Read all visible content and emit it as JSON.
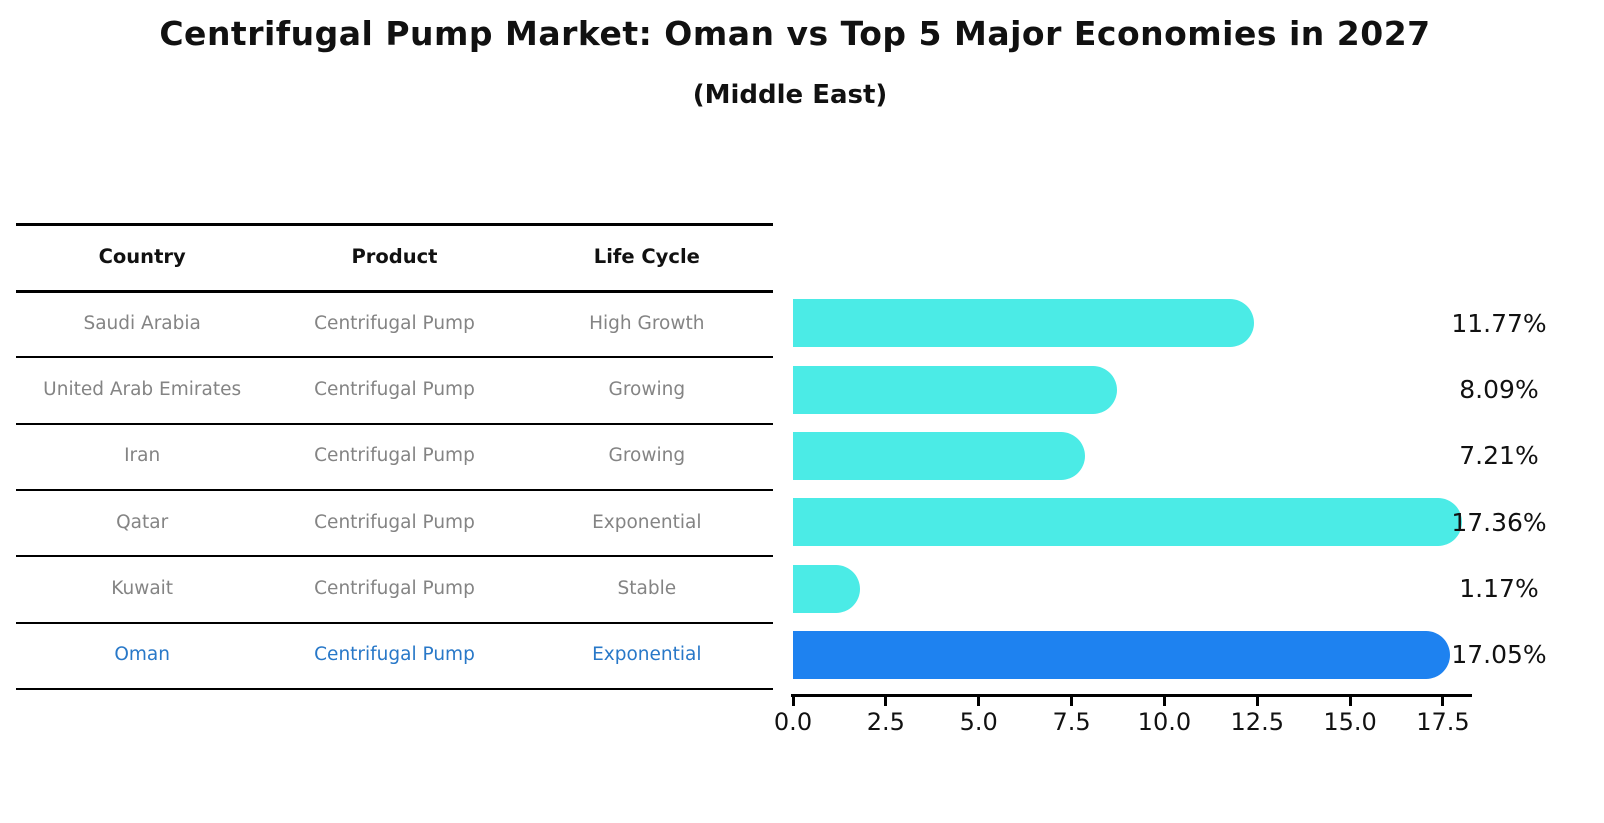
{
  "title": "Centrifugal Pump Market: Oman vs Top 5 Major Economies in 2027",
  "subtitle": "(Middle East)",
  "table": {
    "columns": [
      "Country",
      "Product",
      "Life Cycle"
    ],
    "rows": [
      {
        "country": "Saudi Arabia",
        "product": "Centrifugal Pump",
        "life_cycle": "High Growth",
        "highlight": false
      },
      {
        "country": "United Arab Emirates",
        "product": "Centrifugal Pump",
        "life_cycle": "Growing",
        "highlight": false
      },
      {
        "country": "Iran",
        "product": "Centrifugal Pump",
        "life_cycle": "Growing",
        "highlight": false
      },
      {
        "country": "Qatar",
        "product": "Centrifugal Pump",
        "life_cycle": "Exponential",
        "highlight": false
      },
      {
        "country": "Kuwait",
        "product": "Centrifugal Pump",
        "life_cycle": "Stable",
        "highlight": false
      },
      {
        "country": "Oman",
        "product": "Centrifugal Pump",
        "life_cycle": "Exponential",
        "highlight": true
      }
    ]
  },
  "chart_data": {
    "type": "bar",
    "orientation": "horizontal",
    "title": "Centrifugal Pump Market: Oman vs Top 5 Major Economies in 2027",
    "subtitle": "(Middle East)",
    "categories": [
      "Saudi Arabia",
      "United Arab Emirates",
      "Iran",
      "Qatar",
      "Kuwait",
      "Oman"
    ],
    "values": [
      11.77,
      8.09,
      7.21,
      17.36,
      1.17,
      17.05
    ],
    "value_labels": [
      "11.77%",
      "8.09%",
      "7.21%",
      "17.36%",
      "1.17%",
      "17.05%"
    ],
    "xlim": [
      0,
      18.3
    ],
    "x_ticks": [
      0.0,
      2.5,
      5.0,
      7.5,
      10.0,
      12.5,
      15.0,
      17.5
    ],
    "x_tick_labels": [
      "0.0",
      "2.5",
      "5.0",
      "7.5",
      "10.0",
      "12.5",
      "15.0",
      "17.5"
    ],
    "grid": false,
    "legend": false,
    "highlight_index": 5
  },
  "colors": {
    "bar": "#4BEBE6",
    "highlight_bar": "#1E82F0",
    "highlight_border": "#1E82F0",
    "row_text": "#848484",
    "highlight_text": "#2878C8",
    "header_text": "#111111",
    "axis": "#000000"
  }
}
